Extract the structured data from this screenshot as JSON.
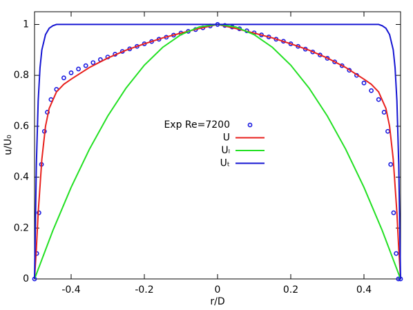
{
  "chart_data": {
    "type": "line",
    "xlabel": "r/D",
    "ylabel": "u/U₀",
    "xlim": [
      -0.5,
      0.5
    ],
    "ylim": [
      0,
      1.05
    ],
    "xticks": [
      -0.4,
      -0.2,
      0,
      0.2,
      0.4
    ],
    "yticks": [
      0,
      0.2,
      0.4,
      0.6,
      0.8,
      1
    ],
    "legend": "center",
    "series": [
      {
        "name": "Exp Re=7200",
        "color": "#1a1ae0",
        "marker": "circle",
        "x": [
          -0.5,
          -0.494,
          -0.488,
          -0.481,
          -0.473,
          -0.465,
          -0.455,
          -0.44,
          -0.42,
          -0.4,
          -0.38,
          -0.36,
          -0.34,
          -0.32,
          -0.3,
          -0.28,
          -0.26,
          -0.24,
          -0.22,
          -0.2,
          -0.18,
          -0.16,
          -0.14,
          -0.12,
          -0.1,
          -0.08,
          -0.06,
          -0.04,
          -0.02,
          0,
          0.02,
          0.04,
          0.06,
          0.08,
          0.1,
          0.12,
          0.14,
          0.16,
          0.18,
          0.2,
          0.22,
          0.24,
          0.26,
          0.28,
          0.3,
          0.32,
          0.34,
          0.36,
          0.38,
          0.4,
          0.42,
          0.44,
          0.455,
          0.465,
          0.473,
          0.481,
          0.488,
          0.494,
          0.5
        ],
        "values": [
          0,
          0.1,
          0.26,
          0.45,
          0.58,
          0.655,
          0.705,
          0.745,
          0.79,
          0.81,
          0.825,
          0.838,
          0.85,
          0.862,
          0.872,
          0.883,
          0.894,
          0.904,
          0.914,
          0.924,
          0.933,
          0.942,
          0.95,
          0.958,
          0.966,
          0.973,
          0.98,
          0.987,
          0.994,
          1,
          0.996,
          0.99,
          0.983,
          0.975,
          0.967,
          0.959,
          0.951,
          0.942,
          0.934,
          0.924,
          0.914,
          0.903,
          0.892,
          0.88,
          0.867,
          0.853,
          0.838,
          0.82,
          0.8,
          0.77,
          0.74,
          0.705,
          0.655,
          0.58,
          0.45,
          0.26,
          0.1,
          0,
          0
        ]
      },
      {
        "name": "U",
        "color": "#e8201c",
        "x": [
          -0.5,
          -0.495,
          -0.49,
          -0.48,
          -0.47,
          -0.46,
          -0.44,
          -0.42,
          -0.4,
          -0.35,
          -0.3,
          -0.25,
          -0.2,
          -0.15,
          -0.1,
          -0.05,
          0,
          0.05,
          0.1,
          0.15,
          0.2,
          0.25,
          0.3,
          0.35,
          0.4,
          0.42,
          0.44,
          0.46,
          0.47,
          0.48,
          0.49,
          0.495,
          0.5
        ],
        "values": [
          0,
          0.12,
          0.26,
          0.47,
          0.6,
          0.67,
          0.735,
          0.765,
          0.785,
          0.831,
          0.868,
          0.899,
          0.924,
          0.947,
          0.966,
          0.984,
          1,
          0.984,
          0.966,
          0.947,
          0.924,
          0.899,
          0.868,
          0.831,
          0.785,
          0.765,
          0.735,
          0.67,
          0.6,
          0.47,
          0.26,
          0.12,
          0
        ]
      },
      {
        "name": "Uₗ",
        "color": "#22e022",
        "x": [
          -0.5,
          -0.45,
          -0.4,
          -0.35,
          -0.3,
          -0.25,
          -0.2,
          -0.15,
          -0.1,
          -0.05,
          0,
          0.05,
          0.1,
          0.15,
          0.2,
          0.25,
          0.3,
          0.35,
          0.4,
          0.45,
          0.5
        ],
        "values": [
          0,
          0.19,
          0.36,
          0.51,
          0.64,
          0.75,
          0.84,
          0.91,
          0.96,
          0.99,
          1,
          0.99,
          0.96,
          0.91,
          0.84,
          0.75,
          0.64,
          0.51,
          0.36,
          0.19,
          0
        ]
      },
      {
        "name": "Uₜ",
        "color": "#1414d2",
        "x": [
          -0.5,
          -0.495,
          -0.49,
          -0.485,
          -0.48,
          -0.47,
          -0.46,
          -0.45,
          -0.44,
          0.44,
          0.45,
          0.46,
          0.47,
          0.48,
          0.485,
          0.49,
          0.495,
          0.5
        ],
        "values": [
          0,
          0.45,
          0.7,
          0.83,
          0.9,
          0.96,
          0.985,
          0.995,
          1,
          1,
          0.995,
          0.985,
          0.96,
          0.9,
          0.83,
          0.7,
          0.45,
          0
        ]
      }
    ]
  }
}
